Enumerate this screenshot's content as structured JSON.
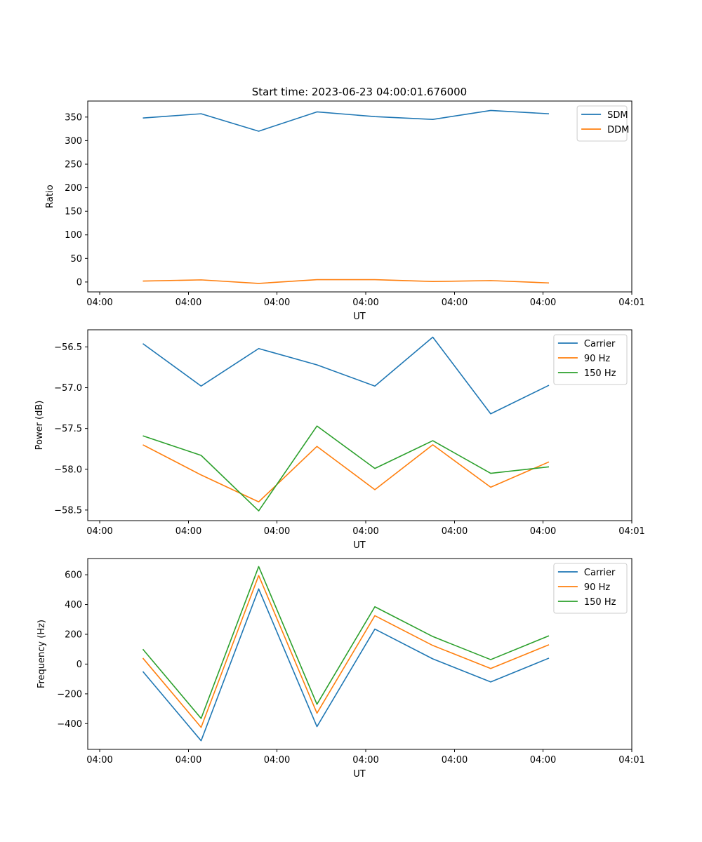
{
  "figure": {
    "title": "Start time: 2023-06-23 04:00:01.676000"
  },
  "colors": {
    "blue": "#1f77b4",
    "orange": "#ff7f0e",
    "green": "#2ca02c"
  },
  "chart_data": [
    {
      "type": "line",
      "title": "Start time: 2023-06-23 04:00:01.676000",
      "xlabel": "UT",
      "ylabel": "Ratio",
      "x_tick_labels": [
        "04:00",
        "04:00",
        "04:00",
        "04:00",
        "04:00",
        "04:00",
        "04:01"
      ],
      "yticks": [
        0,
        50,
        100,
        150,
        200,
        250,
        300,
        350
      ],
      "ylim": [
        -21,
        384
      ],
      "legend": "top-right",
      "grid": false,
      "series": [
        {
          "name": "SDM",
          "color": "#1f77b4",
          "values": [
            348,
            357,
            320,
            361,
            351,
            345,
            364,
            357
          ]
        },
        {
          "name": "DDM",
          "color": "#ff7f0e",
          "values": [
            2,
            4.5,
            -3,
            5,
            5,
            1,
            3,
            -2
          ]
        }
      ]
    },
    {
      "type": "line",
      "xlabel": "UT",
      "ylabel": "Power (dB)",
      "x_tick_labels": [
        "04:00",
        "04:00",
        "04:00",
        "04:00",
        "04:00",
        "04:00",
        "04:01"
      ],
      "yticks": [
        -56.5,
        -57.0,
        -57.5,
        -58.0,
        -58.5
      ],
      "ytick_labels": [
        "−56.5",
        "−57.0",
        "−57.5",
        "−58.0",
        "−58.5"
      ],
      "ylim": [
        -58.63,
        -56.29
      ],
      "legend": "top-right",
      "grid": false,
      "series": [
        {
          "name": "Carrier",
          "color": "#1f77b4",
          "values": [
            -56.46,
            -56.98,
            -56.52,
            -56.72,
            -56.98,
            -56.38,
            -57.32,
            -56.97
          ]
        },
        {
          "name": "90 Hz",
          "color": "#ff7f0e",
          "values": [
            -57.7,
            -58.07,
            -58.4,
            -57.72,
            -58.25,
            -57.7,
            -58.22,
            -57.91
          ]
        },
        {
          "name": "150 Hz",
          "color": "#2ca02c",
          "values": [
            -57.59,
            -57.83,
            -58.51,
            -57.47,
            -57.99,
            -57.65,
            -58.05,
            -57.97
          ]
        }
      ]
    },
    {
      "type": "line",
      "xlabel": "UT",
      "ylabel": "Frequency (Hz)",
      "x_tick_labels": [
        "04:00",
        "04:00",
        "04:00",
        "04:00",
        "04:00",
        "04:00",
        "04:01"
      ],
      "yticks": [
        600,
        400,
        200,
        0,
        -200,
        -400
      ],
      "ytick_labels": [
        "600",
        "400",
        "200",
        "0",
        "−200",
        "−400"
      ],
      "ylim": [
        -573,
        709
      ],
      "legend": "top-right",
      "grid": false,
      "series": [
        {
          "name": "Carrier",
          "color": "#1f77b4",
          "values": [
            -50,
            -515,
            505,
            -420,
            235,
            35,
            -120,
            40
          ]
        },
        {
          "name": "90 Hz",
          "color": "#ff7f0e",
          "values": [
            40,
            -425,
            595,
            -330,
            325,
            125,
            -30,
            130
          ]
        },
        {
          "name": "150 Hz",
          "color": "#2ca02c",
          "values": [
            100,
            -365,
            655,
            -270,
            385,
            185,
            30,
            190
          ]
        }
      ]
    }
  ]
}
